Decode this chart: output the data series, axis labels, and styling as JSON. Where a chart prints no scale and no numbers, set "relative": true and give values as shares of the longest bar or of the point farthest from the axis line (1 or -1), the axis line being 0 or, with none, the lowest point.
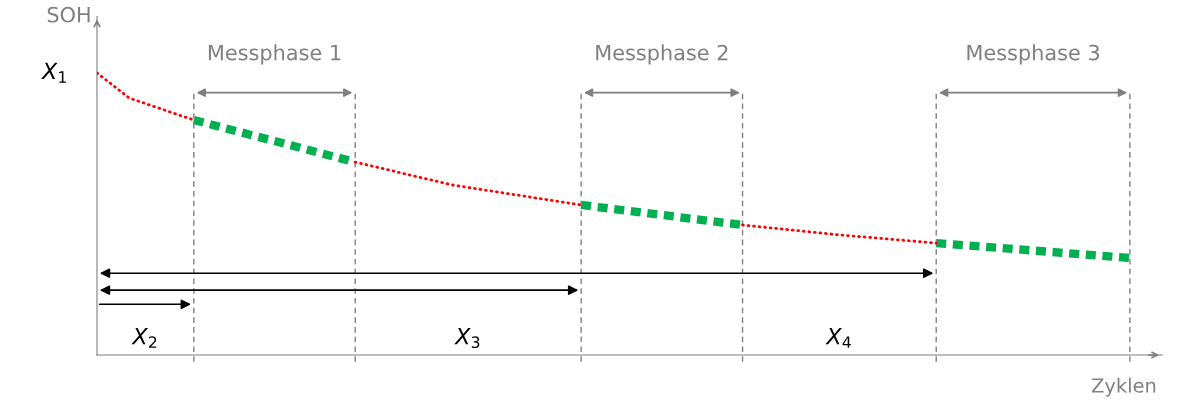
{
  "chart_data": {
    "type": "line",
    "relative": true,
    "grid": "x",
    "xlabel": "Zyklen",
    "ylabel": "SOH",
    "categories": [
      null,
      null,
      null,
      null,
      null,
      null,
      null,
      null,
      null,
      null,
      null,
      null,
      null,
      null,
      null,
      null,
      null,
      null,
      null,
      null,
      null,
      null,
      null,
      null,
      null,
      null,
      null,
      null,
      null,
      null,
      null,
      null,
      null
    ],
    "series": [
      {
        "color": "#ff0000",
        "line_style": "dotted",
        "values": [
          1,
          0.911,
          null,
          0.833,
          null,
          null,
          null,
          null,
          null,
          null,
          null,
          null,
          null,
          null,
          null,
          null,
          null,
          null,
          null,
          null,
          null,
          null,
          null,
          null,
          null,
          null,
          null,
          null,
          null,
          null,
          null,
          null,
          null
        ]
      },
      {
        "color": "#00b050",
        "line_style": "dashed",
        "values": [
          null,
          null,
          null,
          0.833,
          null,
          null,
          null,
          null,
          0.684,
          null,
          null,
          null,
          null,
          null,
          null,
          null,
          null,
          null,
          null,
          null,
          null,
          null,
          null,
          null,
          null,
          null,
          null,
          null,
          null,
          null,
          null,
          null,
          null
        ]
      },
      {
        "color": "#ff0000",
        "line_style": "dotted",
        "values": [
          null,
          null,
          null,
          null,
          null,
          null,
          null,
          null,
          0.684,
          null,
          null,
          0.603,
          null,
          null,
          null,
          0.532,
          null,
          null,
          null,
          null,
          null,
          null,
          null,
          null,
          null,
          null,
          null,
          null,
          null,
          null,
          null,
          null,
          null
        ]
      },
      {
        "color": "#00b050",
        "line_style": "dashed",
        "values": [
          null,
          null,
          null,
          null,
          null,
          null,
          null,
          null,
          null,
          null,
          null,
          null,
          null,
          null,
          null,
          0.532,
          null,
          null,
          null,
          null,
          0.461,
          null,
          null,
          null,
          null,
          null,
          null,
          null,
          null,
          null,
          null,
          null,
          null
        ]
      },
      {
        "color": "#ff0000",
        "line_style": "dotted",
        "values": [
          null,
          null,
          null,
          null,
          null,
          null,
          null,
          null,
          null,
          null,
          null,
          null,
          null,
          null,
          null,
          null,
          null,
          null,
          null,
          null,
          0.461,
          null,
          null,
          0.426,
          null,
          null,
          0.397,
          null,
          null,
          null,
          null,
          null,
          null
        ]
      },
      {
        "color": "#00b050",
        "line_style": "dashed",
        "values": [
          null,
          null,
          null,
          null,
          null,
          null,
          null,
          null,
          null,
          null,
          null,
          null,
          null,
          null,
          null,
          null,
          null,
          null,
          null,
          null,
          null,
          null,
          null,
          null,
          null,
          null,
          0.397,
          null,
          null,
          null,
          null,
          null,
          0.344
        ]
      }
    ],
    "annotations": [
      "X$_{1}$",
      "Messphase 1",
      "Messphase 2",
      "Messphase 3",
      "X$_{2}$",
      "X$_{3}$",
      "X$_{4}$"
    ]
  }
}
